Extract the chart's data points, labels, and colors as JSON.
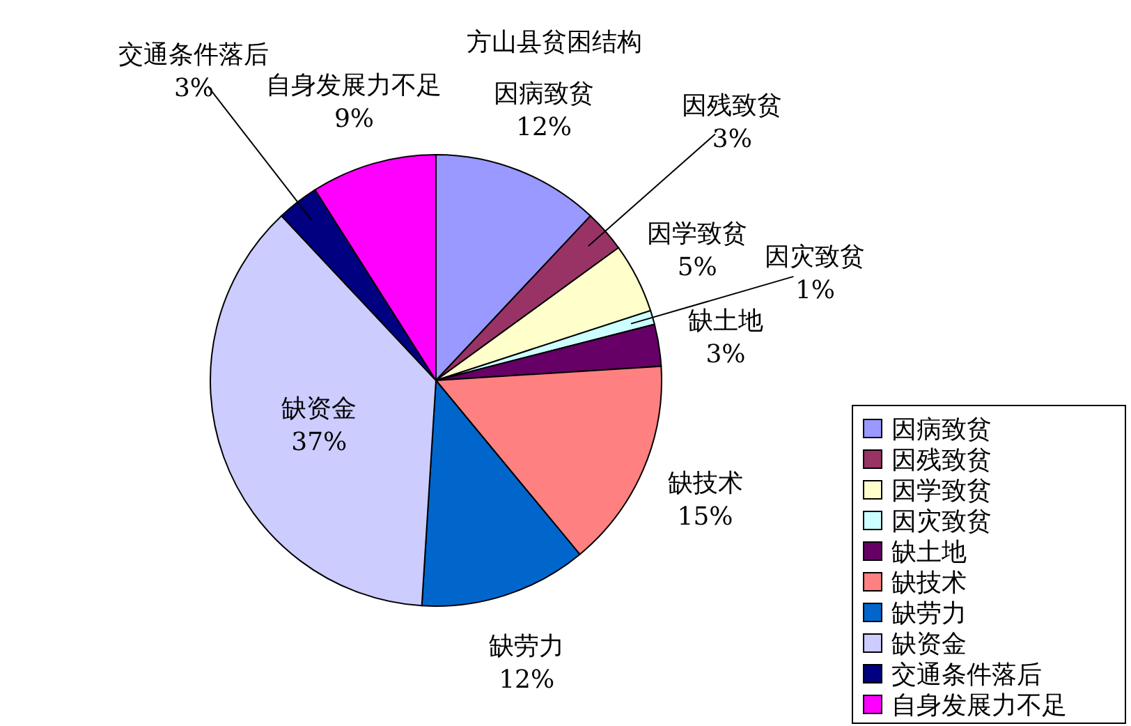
{
  "chart_data": {
    "type": "pie",
    "title": "方山县贫困结构",
    "categories": [
      "因病致贫",
      "因残致贫",
      "因学致贫",
      "因灾致贫",
      "缺土地",
      "缺技术",
      "缺劳力",
      "缺资金",
      "交通条件落后",
      "自身发展力不足"
    ],
    "values": [
      12,
      3,
      5,
      1,
      3,
      15,
      12,
      37,
      3,
      9
    ],
    "colors": [
      "#9999ff",
      "#993366",
      "#ffffcc",
      "#ccffff",
      "#660066",
      "#ff8080",
      "#0066cc",
      "#ccccff",
      "#000080",
      "#ff00ff"
    ],
    "value_labels": [
      "12%",
      "3%",
      "5%",
      "1%",
      "3%",
      "15%",
      "12%",
      "37%",
      "3%",
      "9%"
    ],
    "legend": "bottom right"
  }
}
